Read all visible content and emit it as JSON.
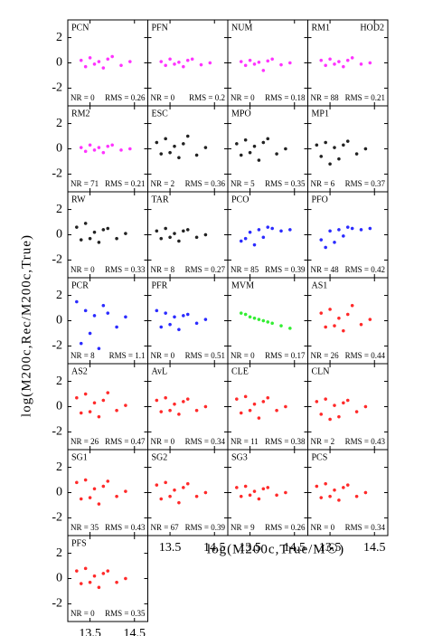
{
  "figure": {
    "xlabel": "log(M200c,True/M☉)",
    "ylabel": "log(M200c,Rec/M200c,True)"
  },
  "chart_data": [
    {
      "type": "scatter",
      "title": "PCN",
      "nr": "NR = 0",
      "rms": "RMS = 0.26",
      "color": "#ff33ff",
      "x": [
        13.3,
        13.4,
        13.5,
        13.6,
        13.7,
        13.8,
        13.9,
        14.0,
        14.2,
        14.4
      ],
      "y": [
        0.2,
        -0.3,
        0.4,
        -0.1,
        0.1,
        -0.4,
        0.3,
        0.5,
        -0.2,
        0.1
      ],
      "xlim": [
        13,
        14.8
      ],
      "xticks": [
        13.5,
        14.5
      ],
      "ylim": [
        -3.4,
        3.4
      ],
      "yticks": [
        -2,
        0,
        2
      ]
    },
    {
      "type": "scatter",
      "title": "PFN",
      "nr": "NR = 0",
      "rms": "RMS = 0.2",
      "color": "#ff33ff",
      "x": [
        13.3,
        13.4,
        13.5,
        13.6,
        13.7,
        13.8,
        13.9,
        14.0,
        14.2,
        14.4
      ],
      "y": [
        0.1,
        -0.2,
        0.3,
        -0.1,
        0.05,
        -0.3,
        0.2,
        0.3,
        -0.15,
        0.0
      ],
      "xlim": [
        13,
        14.8
      ],
      "xticks": [
        13.5,
        14.5
      ],
      "ylim": [
        -3.4,
        3.4
      ],
      "yticks": [
        -2,
        0,
        2
      ]
    },
    {
      "type": "scatter",
      "title": "NUM",
      "nr": "NR = 0",
      "rms": "RMS = 0.18",
      "color": "#ff33ff",
      "x": [
        13.3,
        13.4,
        13.5,
        13.6,
        13.7,
        13.8,
        13.9,
        14.0,
        14.2,
        14.4
      ],
      "y": [
        0.1,
        -0.2,
        0.2,
        -0.1,
        0.05,
        -0.6,
        0.15,
        0.3,
        -0.15,
        0.0
      ],
      "xlim": [
        13,
        14.8
      ],
      "xticks": [
        13.5,
        14.5
      ],
      "ylim": [
        -3.4,
        3.4
      ],
      "yticks": [
        -2,
        0,
        2
      ]
    },
    {
      "type": "scatter",
      "title": "RM1",
      "note": "HOD2",
      "nr": "NR = 88",
      "rms": "RMS = 0.21",
      "color": "#ff33ff",
      "x": [
        13.3,
        13.4,
        13.5,
        13.6,
        13.7,
        13.8,
        13.9,
        14.0,
        14.2,
        14.4
      ],
      "y": [
        0.2,
        -0.2,
        0.3,
        -0.1,
        0.1,
        -0.3,
        0.2,
        0.4,
        -0.1,
        0.0
      ],
      "xlim": [
        13,
        14.8
      ],
      "xticks": [
        13.5,
        14.5
      ],
      "ylim": [
        -3.4,
        3.4
      ],
      "yticks": [
        -2,
        0,
        2
      ]
    },
    {
      "type": "scatter",
      "title": "RM2",
      "nr": "NR = 71",
      "rms": "RMS = 0.21",
      "color": "#ff33ff",
      "x": [
        13.3,
        13.4,
        13.5,
        13.6,
        13.7,
        13.8,
        13.9,
        14.0,
        14.2,
        14.4
      ],
      "y": [
        0.1,
        -0.2,
        0.3,
        -0.1,
        0.1,
        -0.3,
        0.2,
        0.3,
        -0.1,
        0.0
      ],
      "xlim": [
        13,
        14.8
      ],
      "xticks": [
        13.5,
        14.5
      ],
      "ylim": [
        -3.4,
        3.4
      ],
      "yticks": [
        -2,
        0,
        2
      ]
    },
    {
      "type": "scatter",
      "title": "ESC",
      "nr": "NR = 2",
      "rms": "RMS = 0.36",
      "color": "#222222",
      "x": [
        13.2,
        13.3,
        13.4,
        13.5,
        13.6,
        13.7,
        13.8,
        13.9,
        14.1,
        14.3
      ],
      "y": [
        0.5,
        -0.4,
        0.8,
        -0.3,
        0.2,
        -0.7,
        0.4,
        1.0,
        -0.5,
        0.1
      ],
      "xlim": [
        13,
        14.8
      ],
      "xticks": [
        13.5,
        14.5
      ],
      "ylim": [
        -3.4,
        3.4
      ],
      "yticks": [
        -2,
        0,
        2
      ]
    },
    {
      "type": "scatter",
      "title": "MPO",
      "nr": "NR = 5",
      "rms": "RMS = 0.35",
      "color": "#222222",
      "x": [
        13.2,
        13.3,
        13.4,
        13.5,
        13.6,
        13.7,
        13.8,
        13.9,
        14.1,
        14.3
      ],
      "y": [
        0.4,
        -0.5,
        0.7,
        -0.3,
        0.2,
        -0.9,
        0.5,
        0.8,
        -0.4,
        0.0
      ],
      "xlim": [
        13,
        14.8
      ],
      "xticks": [
        13.5,
        14.5
      ],
      "ylim": [
        -3.4,
        3.4
      ],
      "yticks": [
        -2,
        0,
        2
      ]
    },
    {
      "type": "scatter",
      "title": "MP1",
      "nr": "NR = 6",
      "rms": "RMS = 0.37",
      "color": "#222222",
      "x": [
        13.2,
        13.3,
        13.4,
        13.5,
        13.6,
        13.7,
        13.8,
        13.9,
        14.1,
        14.3
      ],
      "y": [
        0.3,
        -0.6,
        0.5,
        -1.2,
        0.1,
        -0.8,
        0.3,
        0.6,
        -0.4,
        0.0
      ],
      "xlim": [
        13,
        14.8
      ],
      "xticks": [
        13.5,
        14.5
      ],
      "ylim": [
        -3.4,
        3.4
      ],
      "yticks": [
        -2,
        0,
        2
      ]
    },
    {
      "type": "scatter",
      "title": "RW",
      "nr": "NR = 0",
      "rms": "RMS = 0.33",
      "color": "#222222",
      "x": [
        13.2,
        13.3,
        13.4,
        13.5,
        13.6,
        13.7,
        13.8,
        13.9,
        14.1,
        14.3
      ],
      "y": [
        0.6,
        -0.4,
        0.9,
        -0.3,
        0.2,
        -0.6,
        0.4,
        0.5,
        -0.3,
        0.1
      ],
      "xlim": [
        13,
        14.8
      ],
      "xticks": [
        13.5,
        14.5
      ],
      "ylim": [
        -3.4,
        3.4
      ],
      "yticks": [
        -2,
        0,
        2
      ]
    },
    {
      "type": "scatter",
      "title": "TAR",
      "nr": "NR = 8",
      "rms": "RMS = 0.27",
      "color": "#222222",
      "x": [
        13.2,
        13.3,
        13.4,
        13.5,
        13.6,
        13.7,
        13.8,
        13.9,
        14.1,
        14.3
      ],
      "y": [
        0.3,
        -0.3,
        0.5,
        -0.2,
        0.1,
        -0.5,
        0.3,
        0.4,
        -0.2,
        0.0
      ],
      "xlim": [
        13,
        14.8
      ],
      "xticks": [
        13.5,
        14.5
      ],
      "ylim": [
        -3.4,
        3.4
      ],
      "yticks": [
        -2,
        0,
        2
      ]
    },
    {
      "type": "scatter",
      "title": "PCO",
      "nr": "NR = 85",
      "rms": "RMS = 0.39",
      "color": "#2b2bff",
      "x": [
        13.3,
        13.4,
        13.5,
        13.6,
        13.7,
        13.8,
        13.9,
        14.0,
        14.2,
        14.4
      ],
      "y": [
        -0.5,
        -0.3,
        0.2,
        -0.8,
        0.4,
        -0.2,
        0.6,
        0.5,
        0.3,
        0.4
      ],
      "xlim": [
        13,
        14.8
      ],
      "xticks": [
        13.5,
        14.5
      ],
      "ylim": [
        -3.4,
        3.4
      ],
      "yticks": [
        -2,
        0,
        2
      ]
    },
    {
      "type": "scatter",
      "title": "PFO",
      "nr": "NR = 48",
      "rms": "RMS = 0.42",
      "color": "#2b2bff",
      "x": [
        13.3,
        13.4,
        13.5,
        13.6,
        13.7,
        13.8,
        13.9,
        14.0,
        14.2,
        14.4
      ],
      "y": [
        -0.4,
        -1.0,
        0.3,
        -0.6,
        0.4,
        -0.1,
        0.6,
        0.5,
        0.4,
        0.5
      ],
      "xlim": [
        13,
        14.8
      ],
      "xticks": [
        13.5,
        14.5
      ],
      "ylim": [
        -3.4,
        3.4
      ],
      "yticks": [
        -2,
        0,
        2
      ]
    },
    {
      "type": "scatter",
      "title": "PCR",
      "nr": "NR = 8",
      "rms": "RMS = 1.1",
      "color": "#2b2bff",
      "x": [
        13.2,
        13.3,
        13.4,
        13.5,
        13.6,
        13.7,
        13.8,
        13.9,
        14.1,
        14.3
      ],
      "y": [
        1.5,
        -1.8,
        0.8,
        -1.0,
        0.4,
        -2.2,
        1.2,
        0.6,
        -0.5,
        0.3
      ],
      "xlim": [
        13,
        14.8
      ],
      "xticks": [
        13.5,
        14.5
      ],
      "ylim": [
        -3.4,
        3.4
      ],
      "yticks": [
        -2,
        0,
        2
      ]
    },
    {
      "type": "scatter",
      "title": "PFR",
      "nr": "NR = 0",
      "rms": "RMS = 0.51",
      "color": "#2b2bff",
      "x": [
        13.2,
        13.3,
        13.4,
        13.5,
        13.6,
        13.7,
        13.8,
        13.9,
        14.1,
        14.3
      ],
      "y": [
        0.8,
        -0.5,
        0.6,
        -0.3,
        0.3,
        -0.7,
        0.4,
        0.5,
        -0.2,
        0.1
      ],
      "xlim": [
        13,
        14.8
      ],
      "xticks": [
        13.5,
        14.5
      ],
      "ylim": [
        -3.4,
        3.4
      ],
      "yticks": [
        -2,
        0,
        2
      ]
    },
    {
      "type": "scatter",
      "title": "MVM",
      "nr": "NR = 0",
      "rms": "RMS = 0.17",
      "color": "#33ee33",
      "x": [
        13.3,
        13.4,
        13.5,
        13.6,
        13.7,
        13.8,
        13.9,
        14.0,
        14.2,
        14.4
      ],
      "y": [
        0.6,
        0.5,
        0.3,
        0.2,
        0.1,
        0.0,
        -0.1,
        -0.2,
        -0.4,
        -0.6
      ],
      "xlim": [
        13,
        14.8
      ],
      "xticks": [
        13.5,
        14.5
      ],
      "ylim": [
        -3.4,
        3.4
      ],
      "yticks": [
        -2,
        0,
        2
      ]
    },
    {
      "type": "scatter",
      "title": "AS1",
      "nr": "NR = 26",
      "rms": "RMS = 0.44",
      "color": "#ff2a2a",
      "x": [
        13.3,
        13.4,
        13.5,
        13.6,
        13.7,
        13.8,
        13.9,
        14.0,
        14.2,
        14.4
      ],
      "y": [
        0.6,
        -0.5,
        0.9,
        -0.4,
        0.2,
        -0.8,
        0.5,
        1.2,
        -0.3,
        0.1
      ],
      "xlim": [
        13,
        14.8
      ],
      "xticks": [
        13.5,
        14.5
      ],
      "ylim": [
        -3.4,
        3.4
      ],
      "yticks": [
        -2,
        0,
        2
      ]
    },
    {
      "type": "scatter",
      "title": "AS2",
      "nr": "NR = 26",
      "rms": "RMS = 0.47",
      "color": "#ff2a2a",
      "x": [
        13.2,
        13.3,
        13.4,
        13.5,
        13.6,
        13.7,
        13.8,
        13.9,
        14.1,
        14.3
      ],
      "y": [
        0.7,
        -0.5,
        1.0,
        -0.4,
        0.3,
        -0.8,
        0.5,
        1.1,
        -0.3,
        0.1
      ],
      "xlim": [
        13,
        14.8
      ],
      "xticks": [
        13.5,
        14.5
      ],
      "ylim": [
        -3.4,
        3.4
      ],
      "yticks": [
        -2,
        0,
        2
      ]
    },
    {
      "type": "scatter",
      "title": "AvL",
      "nr": "NR = 0",
      "rms": "RMS = 0.34",
      "color": "#ff2a2a",
      "x": [
        13.2,
        13.3,
        13.4,
        13.5,
        13.6,
        13.7,
        13.8,
        13.9,
        14.1,
        14.3
      ],
      "y": [
        0.5,
        -0.4,
        0.7,
        -0.3,
        0.2,
        -0.6,
        0.4,
        0.6,
        -0.3,
        0.0
      ],
      "xlim": [
        13,
        14.8
      ],
      "xticks": [
        13.5,
        14.5
      ],
      "ylim": [
        -3.4,
        3.4
      ],
      "yticks": [
        -2,
        0,
        2
      ]
    },
    {
      "type": "scatter",
      "title": "CLE",
      "nr": "NR = 11",
      "rms": "RMS = 0.38",
      "color": "#ff2a2a",
      "x": [
        13.2,
        13.3,
        13.4,
        13.5,
        13.6,
        13.7,
        13.8,
        13.9,
        14.1,
        14.3
      ],
      "y": [
        0.6,
        -0.5,
        0.8,
        -0.3,
        0.2,
        -0.9,
        0.4,
        0.7,
        -0.3,
        0.0
      ],
      "xlim": [
        13,
        14.8
      ],
      "xticks": [
        13.5,
        14.5
      ],
      "ylim": [
        -3.4,
        3.4
      ],
      "yticks": [
        -2,
        0,
        2
      ]
    },
    {
      "type": "scatter",
      "title": "CLN",
      "nr": "NR = 2",
      "rms": "RMS = 0.43",
      "color": "#ff2a2a",
      "x": [
        13.2,
        13.3,
        13.4,
        13.5,
        13.6,
        13.7,
        13.8,
        13.9,
        14.1,
        14.3
      ],
      "y": [
        0.4,
        -0.6,
        0.6,
        -1.0,
        0.1,
        -0.8,
        0.3,
        0.5,
        -0.4,
        0.0
      ],
      "xlim": [
        13,
        14.8
      ],
      "xticks": [
        13.5,
        14.5
      ],
      "ylim": [
        -3.4,
        3.4
      ],
      "yticks": [
        -2,
        0,
        2
      ]
    },
    {
      "type": "scatter",
      "title": "SG1",
      "nr": "NR = 35",
      "rms": "RMS = 0.43",
      "color": "#ff2a2a",
      "x": [
        13.2,
        13.3,
        13.4,
        13.5,
        13.6,
        13.7,
        13.8,
        13.9,
        14.1,
        14.3
      ],
      "y": [
        0.8,
        -0.5,
        1.0,
        -0.4,
        0.3,
        -0.9,
        0.5,
        0.9,
        -0.3,
        0.1
      ],
      "xlim": [
        13,
        14.8
      ],
      "xticks": [
        13.5,
        14.5
      ],
      "ylim": [
        -3.4,
        3.4
      ],
      "yticks": [
        -2,
        0,
        2
      ]
    },
    {
      "type": "scatter",
      "title": "SG2",
      "nr": "NR = 67",
      "rms": "RMS = 0.39",
      "color": "#ff2a2a",
      "x": [
        13.2,
        13.3,
        13.4,
        13.5,
        13.6,
        13.7,
        13.8,
        13.9,
        14.1,
        14.3
      ],
      "y": [
        0.6,
        -0.5,
        0.8,
        -0.3,
        0.2,
        -0.8,
        0.4,
        0.7,
        -0.3,
        0.0
      ],
      "xlim": [
        13,
        14.8
      ],
      "xticks": [
        13.5,
        14.5
      ],
      "ylim": [
        -3.4,
        3.4
      ],
      "yticks": [
        -2,
        0,
        2
      ]
    },
    {
      "type": "scatter",
      "title": "SG3",
      "nr": "NR = 9",
      "rms": "RMS = 0.26",
      "color": "#ff2a2a",
      "x": [
        13.2,
        13.3,
        13.4,
        13.5,
        13.6,
        13.7,
        13.8,
        13.9,
        14.1,
        14.3
      ],
      "y": [
        0.4,
        -0.3,
        0.5,
        -0.2,
        0.1,
        -0.5,
        0.3,
        0.4,
        -0.2,
        0.0
      ],
      "xlim": [
        13,
        14.8
      ],
      "xticks": [
        13.5,
        14.5
      ],
      "ylim": [
        -3.4,
        3.4
      ],
      "yticks": [
        -2,
        0,
        2
      ]
    },
    {
      "type": "scatter",
      "title": "PCS",
      "nr": "NR = 0",
      "rms": "RMS = 0.34",
      "color": "#ff2a2a",
      "x": [
        13.2,
        13.3,
        13.4,
        13.5,
        13.6,
        13.7,
        13.8,
        13.9,
        14.1,
        14.3
      ],
      "y": [
        0.5,
        -0.4,
        0.7,
        -0.3,
        0.2,
        -0.6,
        0.4,
        0.6,
        -0.3,
        0.0
      ],
      "xlim": [
        13,
        14.8
      ],
      "xticks": [
        13.5,
        14.5
      ],
      "ylim": [
        -3.4,
        3.4
      ],
      "yticks": [
        -2,
        0,
        2
      ]
    },
    {
      "type": "scatter",
      "title": "PFS",
      "nr": "NR = 0",
      "rms": "RMS = 0.35",
      "color": "#ff2a2a",
      "x": [
        13.2,
        13.3,
        13.4,
        13.5,
        13.6,
        13.7,
        13.8,
        13.9,
        14.1,
        14.3
      ],
      "y": [
        0.6,
        -0.4,
        0.8,
        -0.3,
        0.2,
        -0.7,
        0.4,
        0.6,
        -0.3,
        0.0
      ],
      "xlim": [
        13,
        14.8
      ],
      "xticks": [
        13.5,
        14.5
      ],
      "ylim": [
        -3.4,
        3.4
      ],
      "yticks": [
        -2,
        0,
        2
      ]
    }
  ]
}
